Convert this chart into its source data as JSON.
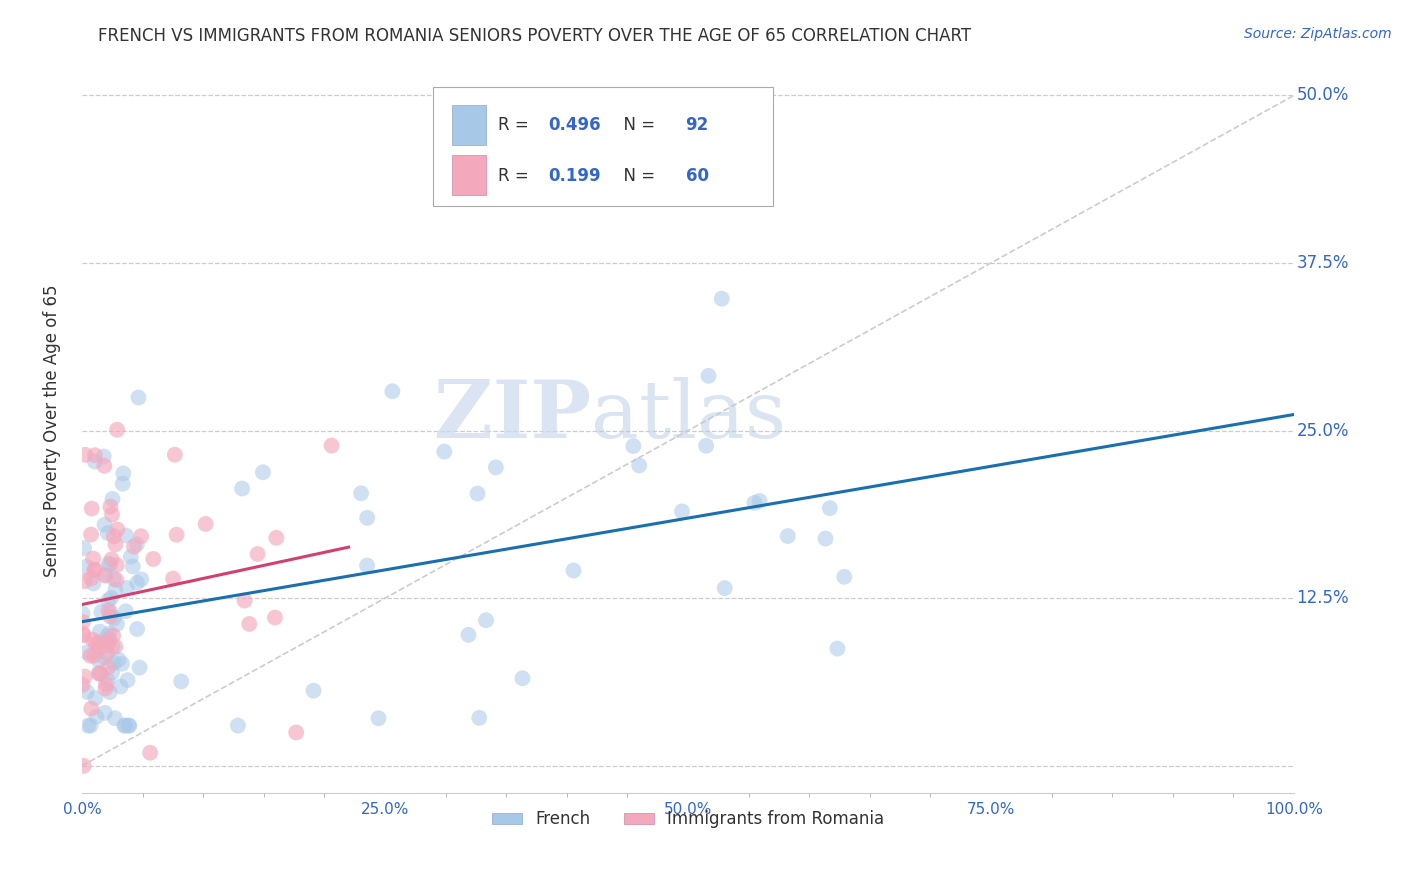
{
  "title": "FRENCH VS IMMIGRANTS FROM ROMANIA SENIORS POVERTY OVER THE AGE OF 65 CORRELATION CHART",
  "source": "Source: ZipAtlas.com",
  "ylabel": "Seniors Poverty Over the Age of 65",
  "xlim": [
    0,
    1
  ],
  "ylim": [
    -0.02,
    0.52
  ],
  "yticks": [
    0.0,
    0.125,
    0.25,
    0.375,
    0.5
  ],
  "ytick_labels": [
    "",
    "12.5%",
    "25.0%",
    "37.5%",
    "50.0%"
  ],
  "xticks": [
    0.0,
    0.25,
    0.5,
    0.75,
    1.0
  ],
  "xtick_labels": [
    "0.0%",
    "25.0%",
    "50.0%",
    "75.0%",
    "100.0%"
  ],
  "r_french": 0.496,
  "n_french": 92,
  "r_romania": 0.199,
  "n_romania": 60,
  "french_color": "#a8c8e8",
  "romania_color": "#f4a8bc",
  "french_line_color": "#1a6faf",
  "romania_line_color": "#d43f6f",
  "watermark_zip": "ZIP",
  "watermark_atlas": "atlas",
  "diag_line_color": "#cccccc"
}
